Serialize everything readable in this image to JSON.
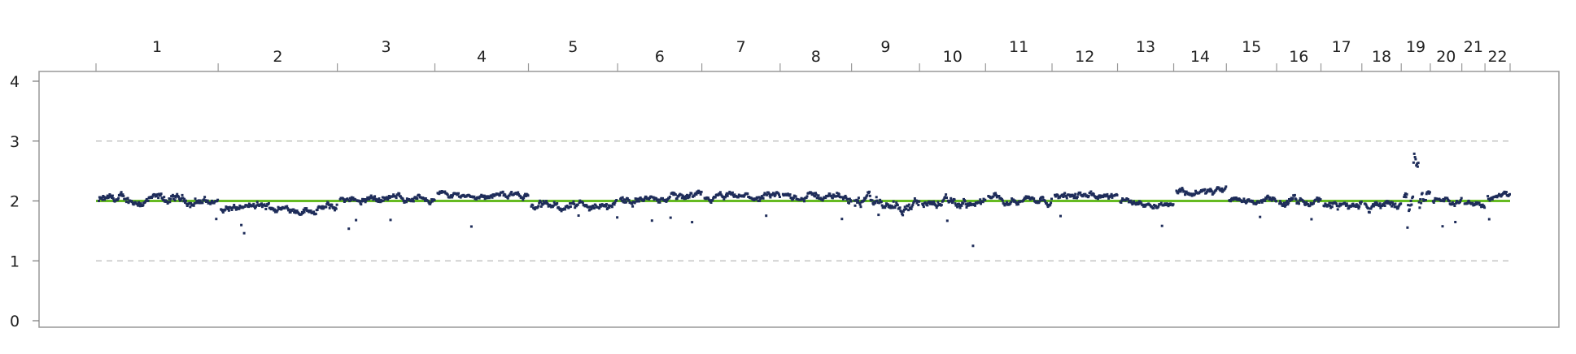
{
  "chart_data": {
    "type": "scatter",
    "title": "",
    "xlabel": "",
    "ylabel": "",
    "ylim": [
      0,
      4
    ],
    "y_ticks": [
      0,
      1,
      2,
      3,
      4
    ],
    "grid": "dashed horizontal at y=1 and y=3",
    "reference_line": {
      "y": 2,
      "color": "#66bb22"
    },
    "point_color": "#1f2d5a",
    "chromosomes": [
      {
        "label": "1",
        "width": 248,
        "base": 2.0,
        "var": 0.09
      },
      {
        "label": "2",
        "width": 242,
        "base": 1.88,
        "var": 0.08
      },
      {
        "label": "3",
        "width": 198,
        "base": 2.05,
        "var": 0.07
      },
      {
        "label": "4",
        "width": 190,
        "base": 2.1,
        "var": 0.06
      },
      {
        "label": "5",
        "width": 181,
        "base": 1.92,
        "var": 0.08
      },
      {
        "label": "6",
        "width": 171,
        "base": 2.03,
        "var": 0.08
      },
      {
        "label": "7",
        "width": 159,
        "base": 2.05,
        "var": 0.07
      },
      {
        "label": "8",
        "width": 145,
        "base": 2.08,
        "var": 0.07
      },
      {
        "label": "9",
        "width": 138,
        "base": 1.95,
        "var": 0.12
      },
      {
        "label": "10",
        "width": 134,
        "base": 1.95,
        "var": 0.09
      },
      {
        "label": "11",
        "width": 135,
        "base": 2.05,
        "var": 0.07
      },
      {
        "label": "12",
        "width": 133,
        "base": 2.08,
        "var": 0.07
      },
      {
        "label": "13",
        "width": 114,
        "base": 1.98,
        "var": 0.06
      },
      {
        "label": "14",
        "width": 107,
        "base": 2.15,
        "var": 0.07
      },
      {
        "label": "15",
        "width": 102,
        "base": 2.0,
        "var": 0.06
      },
      {
        "label": "16",
        "width": 90,
        "base": 1.97,
        "var": 0.09
      },
      {
        "label": "17",
        "width": 83,
        "base": 1.93,
        "var": 0.08
      },
      {
        "label": "18",
        "width": 80,
        "base": 1.93,
        "var": 0.08
      },
      {
        "label": "19",
        "width": 59,
        "base": 2.0,
        "var": 0.2
      },
      {
        "label": "20",
        "width": 64,
        "base": 2.03,
        "var": 0.06
      },
      {
        "label": "21",
        "width": 47,
        "base": 1.95,
        "var": 0.06
      },
      {
        "label": "22",
        "width": 51,
        "base": 2.05,
        "var": 0.07
      }
    ]
  }
}
